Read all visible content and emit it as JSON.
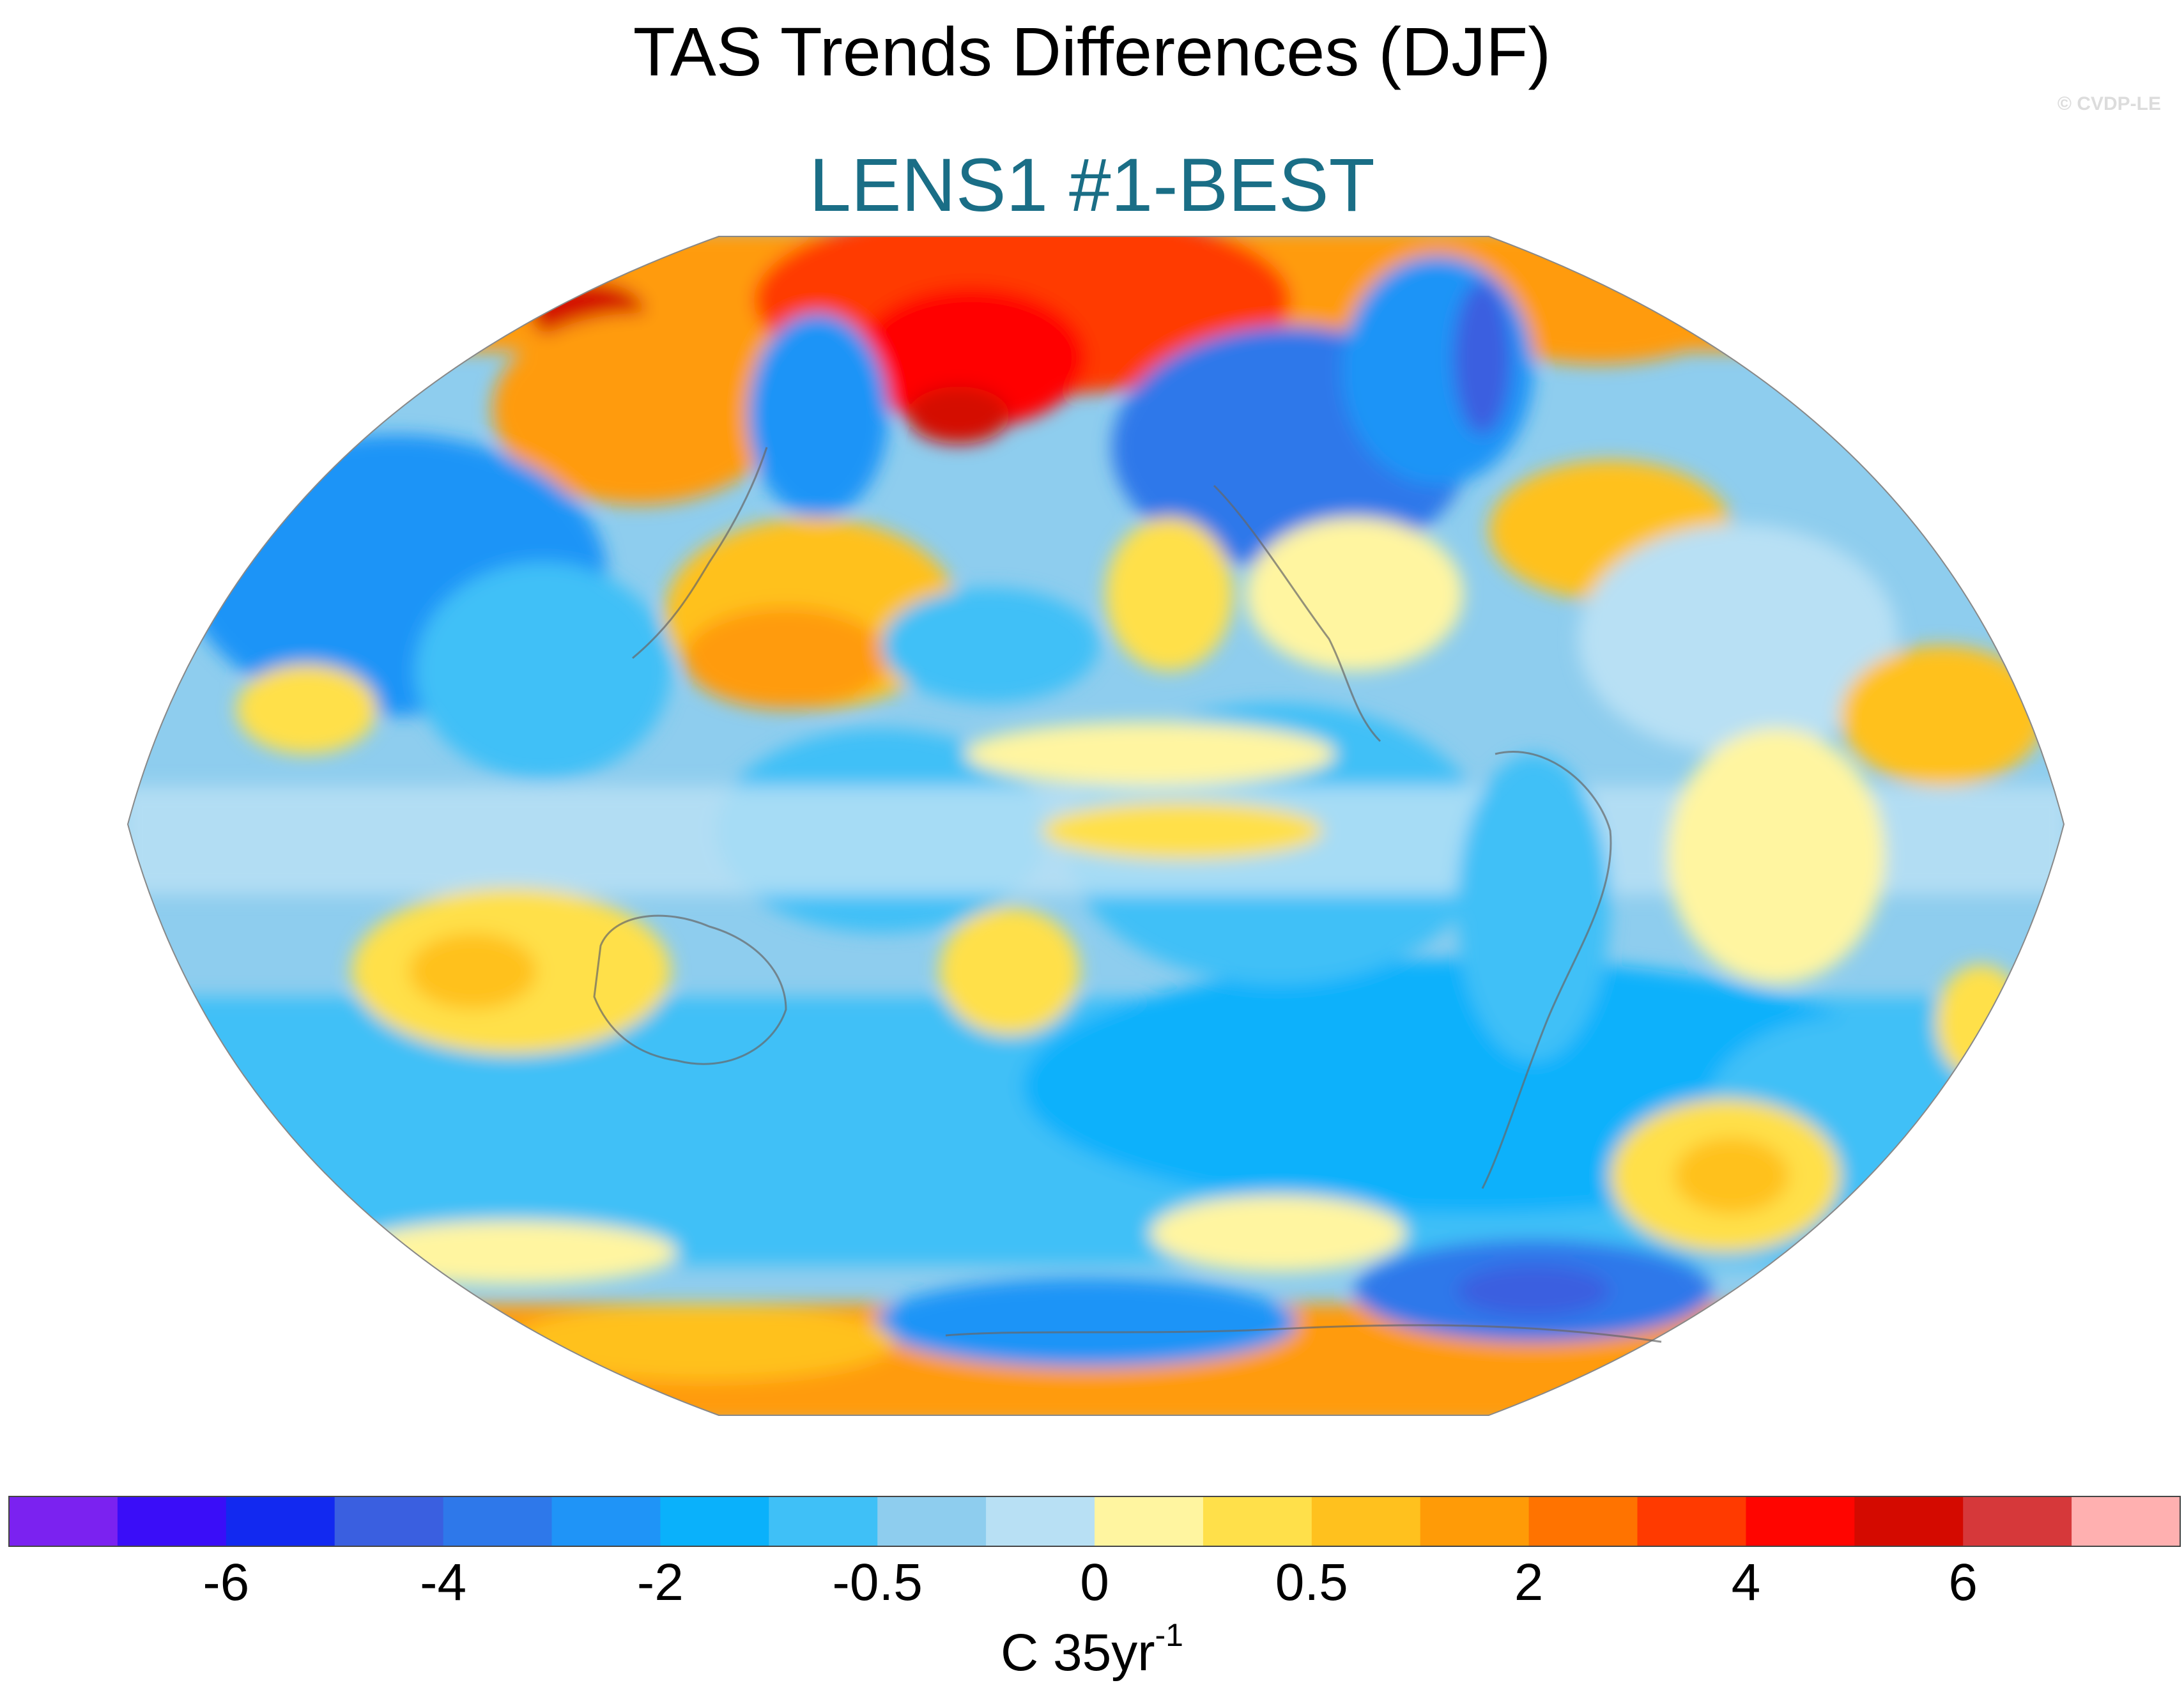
{
  "title": "TAS Trends Differences (DJF)",
  "subtitle": "LENS1 #1-BEST",
  "credit": "© CVDP-LE",
  "colorbar": {
    "colors": [
      "#7b22f0",
      "#3a0df8",
      "#1229f0",
      "#3a5fe0",
      "#2e78ea",
      "#1f94f7",
      "#0ab1fb",
      "#3fc0f7",
      "#8ecdee",
      "#b8e0f4",
      "#fff5a0",
      "#ffe04a",
      "#ffc11e",
      "#ff9b07",
      "#ff7300",
      "#ff3a00",
      "#ff0500",
      "#d40a00",
      "#d6383a",
      "#ffb0b0"
    ],
    "tick_labels": [
      "-6",
      "-4",
      "-2",
      "-0.5",
      "0",
      "0.5",
      "2",
      "4",
      "6"
    ],
    "tick_boundaries": [
      2,
      4,
      6,
      8,
      10,
      12,
      14,
      16,
      18
    ],
    "units_base": "C 35yr",
    "units_exp": "-1"
  },
  "chart_data": {
    "type": "heatmap",
    "title": "TAS Trends Differences (DJF)",
    "subtitle": "LENS1 #1-BEST",
    "projection": "Robinson",
    "central_longitude": 180,
    "variable": "TAS",
    "season": "DJF",
    "units": "C 35yr-1",
    "colorbar_ticks": [
      -6,
      -4,
      -2,
      -0.5,
      0,
      0.5,
      2,
      4,
      6
    ],
    "features": [
      {
        "region": "Bering Sea / East Siberia",
        "value_class": "strong positive (4 to 6)"
      },
      {
        "region": "Arctic (north of Alaska/Siberia)",
        "value_class": "positive (2 to 4)"
      },
      {
        "region": "Northern Canada / Hudson Bay",
        "value_class": "negative (-2 to -4)"
      },
      {
        "region": "Central Asia",
        "value_class": "negative (-0.5 to -2)"
      },
      {
        "region": "North Pacific (Kuroshio)",
        "value_class": "positive (0.5 to 2)"
      },
      {
        "region": "Central North Pacific",
        "value_class": "negative (-0.5 to -2)"
      },
      {
        "region": "Eastern United States",
        "value_class": "positive (0 to 0.5)"
      },
      {
        "region": "North Atlantic",
        "value_class": "positive (0.5 to 2)"
      },
      {
        "region": "Northern Africa / Sahara",
        "value_class": "positive (0.5 to 2)"
      },
      {
        "region": "Australia",
        "value_class": "positive (0 to 0.5)"
      },
      {
        "region": "South Pacific",
        "value_class": "negative (-0.5 to -2)"
      },
      {
        "region": "South Atlantic",
        "value_class": "positive (0.5 to 2)"
      },
      {
        "region": "Weddell Sea",
        "value_class": "negative (-2 to -4)"
      },
      {
        "region": "Antarctica (East)",
        "value_class": "positive (0.5 to 2)"
      }
    ]
  }
}
